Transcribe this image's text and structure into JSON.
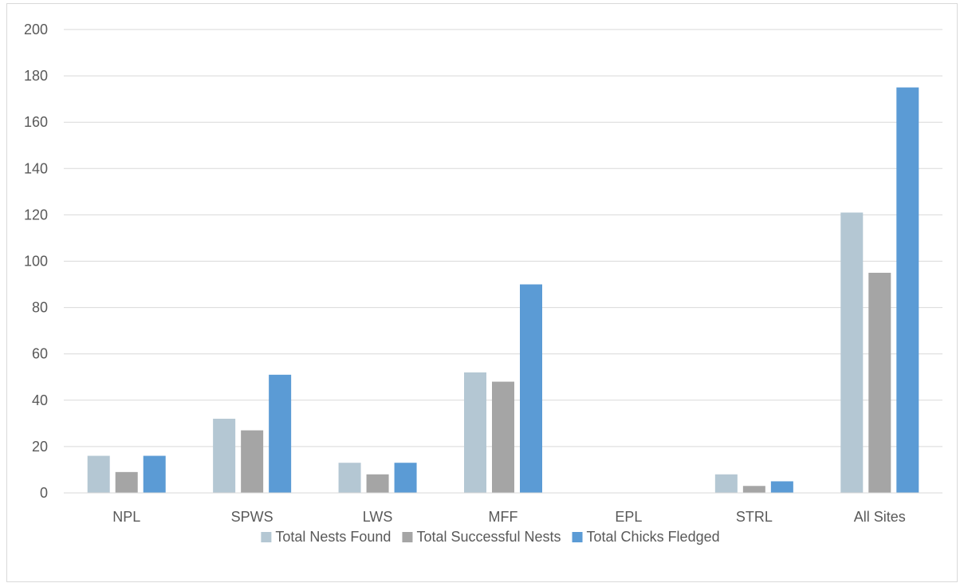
{
  "chart_data": {
    "type": "bar",
    "title": "",
    "xlabel": "",
    "ylabel": "",
    "ylim": [
      0,
      200
    ],
    "yticks": [
      0,
      20,
      40,
      60,
      80,
      100,
      120,
      140,
      160,
      180,
      200
    ],
    "grid": true,
    "legend_position": "bottom",
    "categories": [
      "NPL",
      "SPWS",
      "LWS",
      "MFF",
      "EPL",
      "STRL",
      "All Sites"
    ],
    "series": [
      {
        "name": "Total Nests Found",
        "color": "#b4c7d3",
        "values": [
          16,
          32,
          13,
          52,
          0,
          8,
          121
        ]
      },
      {
        "name": "Total Successful Nests",
        "color": "#a5a5a5",
        "values": [
          9,
          27,
          8,
          48,
          0,
          3,
          95
        ]
      },
      {
        "name": "Total Chicks Fledged",
        "color": "#5b9bd5",
        "values": [
          16,
          51,
          13,
          90,
          0,
          5,
          175
        ]
      }
    ]
  }
}
